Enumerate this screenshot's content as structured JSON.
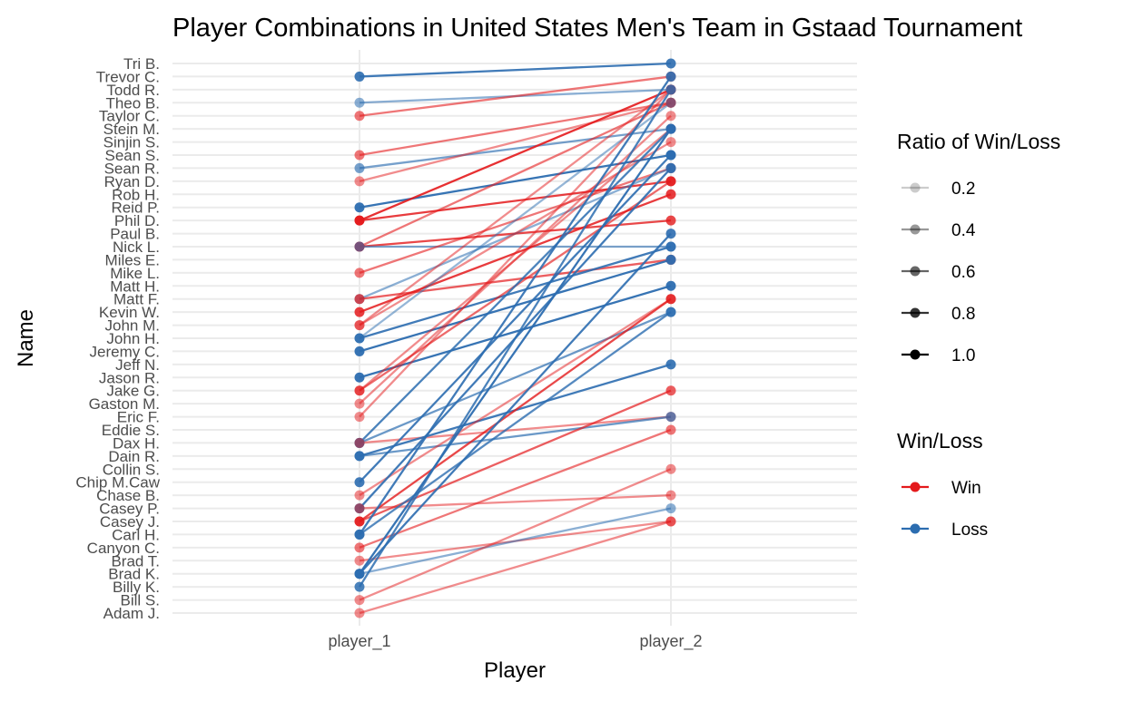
{
  "chart_data": {
    "type": "line",
    "title": "Player Combinations in United States Men's Team in Gstaad Tournament",
    "xlabel": "Player",
    "ylabel": "Name",
    "x_categories": [
      "player_1",
      "player_2"
    ],
    "y_categories": [
      "Adam J.",
      "Bill S.",
      "Billy K.",
      "Brad K.",
      "Brad T.",
      "Canyon C.",
      "Carl H.",
      "Casey J.",
      "Casey P.",
      "Chase B.",
      "Chip M.Caw",
      "Collin S.",
      "Dain R.",
      "Dax H.",
      "Eddie S.",
      "Eric F.",
      "Gaston M.",
      "Jake G.",
      "Jason R.",
      "Jeff N.",
      "Jeremy C.",
      "John H.",
      "John M.",
      "Kevin W.",
      "Matt F.",
      "Matt H.",
      "Mike L.",
      "Miles E.",
      "Nick L.",
      "Paul B.",
      "Phil D.",
      "Reid P.",
      "Rob H.",
      "Ryan D.",
      "Sean R.",
      "Sean S.",
      "Sinjin S.",
      "Stein M.",
      "Taylor C.",
      "Theo B.",
      "Todd R.",
      "Trevor C.",
      "Tri B."
    ],
    "colors": {
      "win": "#e41a1c",
      "loss": "#2c6db0"
    },
    "grid": true,
    "legend_position": "right",
    "legends": {
      "alpha": {
        "title": "Ratio of Win/Loss",
        "values": [
          0.2,
          0.4,
          0.6,
          0.8,
          1.0
        ],
        "labels": [
          "0.2",
          "0.4",
          "0.6",
          "0.8",
          "1.0"
        ]
      },
      "color": {
        "title": "Win/Loss",
        "labels": [
          "Win",
          "Loss"
        ]
      }
    },
    "pairs": [
      {
        "player_1": "Trevor C.",
        "player_2": "Tri B.",
        "result": "Loss",
        "alpha": 0.9
      },
      {
        "player_1": "Theo B.",
        "player_2": "Todd R.",
        "result": "Loss",
        "alpha": 0.55
      },
      {
        "player_1": "Taylor C.",
        "player_2": "Trevor C.",
        "result": "Win",
        "alpha": 0.6
      },
      {
        "player_1": "Sean S.",
        "player_2": "Theo B.",
        "result": "Win",
        "alpha": 0.6
      },
      {
        "player_1": "Sean R.",
        "player_2": "Stein M.",
        "result": "Loss",
        "alpha": 0.65
      },
      {
        "player_1": "Ryan D.",
        "player_2": "Theo B.",
        "result": "Win",
        "alpha": 0.5
      },
      {
        "player_1": "Reid P.",
        "player_2": "Sean S.",
        "result": "Loss",
        "alpha": 0.95
      },
      {
        "player_1": "Phil D.",
        "player_2": "Todd R.",
        "result": "Win",
        "alpha": 0.9
      },
      {
        "player_1": "Phil D.",
        "player_2": "Ryan D.",
        "result": "Win",
        "alpha": 0.85
      },
      {
        "player_1": "Nick L.",
        "player_2": "Phil D.",
        "result": "Win",
        "alpha": 0.8
      },
      {
        "player_1": "Nick L.",
        "player_2": "Theo B.",
        "result": "Win",
        "alpha": 0.6
      },
      {
        "player_1": "Nick L.",
        "player_2": "Nick L.",
        "result": "Loss",
        "alpha": 0.6
      },
      {
        "player_1": "Mike L.",
        "player_2": "Sean R.",
        "result": "Win",
        "alpha": 0.6
      },
      {
        "player_1": "Matt F.",
        "player_2": "Sean R.",
        "result": "Loss",
        "alpha": 0.55
      },
      {
        "player_1": "Matt F.",
        "player_2": "Miles E.",
        "result": "Win",
        "alpha": 0.7
      },
      {
        "player_1": "Kevin W.",
        "player_2": "Rob H.",
        "result": "Win",
        "alpha": 0.85
      },
      {
        "player_1": "John M.",
        "player_2": "Sinjin S.",
        "result": "Win",
        "alpha": 0.5
      },
      {
        "player_1": "John M.",
        "player_2": "Todd R.",
        "result": "Win",
        "alpha": 0.5
      },
      {
        "player_1": "John H.",
        "player_2": "Nick L.",
        "result": "Loss",
        "alpha": 0.9
      },
      {
        "player_1": "John H.",
        "player_2": "Theo B.",
        "result": "Loss",
        "alpha": 0.5
      },
      {
        "player_1": "Jeremy C.",
        "player_2": "Miles E.",
        "result": "Loss",
        "alpha": 0.95
      },
      {
        "player_1": "Jason R.",
        "player_2": "Matt H.",
        "result": "Loss",
        "alpha": 0.95
      },
      {
        "player_1": "Jake G.",
        "player_2": "Stein M.",
        "result": "Win",
        "alpha": 0.5
      },
      {
        "player_1": "Jake G.",
        "player_2": "Ryan D.",
        "result": "Win",
        "alpha": 0.65
      },
      {
        "player_1": "Gaston M.",
        "player_2": "Taylor C.",
        "result": "Win",
        "alpha": 0.5
      },
      {
        "player_1": "Eric F.",
        "player_2": "Todd R.",
        "result": "Win",
        "alpha": 0.5
      },
      {
        "player_1": "Dax H.",
        "player_2": "Stein M.",
        "result": "Loss",
        "alpha": 0.85
      },
      {
        "player_1": "Dax H.",
        "player_2": "Kevin W.",
        "result": "Loss",
        "alpha": 0.7
      },
      {
        "player_1": "Dax H.",
        "player_2": "Eric F.",
        "result": "Win",
        "alpha": 0.5
      },
      {
        "player_1": "Dain R.",
        "player_2": "Jeff N.",
        "result": "Loss",
        "alpha": 0.9
      },
      {
        "player_1": "Dain R.",
        "player_2": "Eric F.",
        "result": "Loss",
        "alpha": 0.7
      },
      {
        "player_1": "Chip M.Caw",
        "player_2": "Sean S.",
        "result": "Loss",
        "alpha": 0.9
      },
      {
        "player_1": "Chase B.",
        "player_2": "Matt F.",
        "result": "Win",
        "alpha": 0.5
      },
      {
        "player_1": "Casey P.",
        "player_2": "Sean R.",
        "result": "Loss",
        "alpha": 0.9
      },
      {
        "player_1": "Casey P.",
        "player_2": "Chase B.",
        "result": "Win",
        "alpha": 0.5
      },
      {
        "player_1": "Casey J.",
        "player_2": "Jake G.",
        "result": "Win",
        "alpha": 0.7
      },
      {
        "player_1": "Casey J.",
        "player_2": "Matt F.",
        "result": "Win",
        "alpha": 0.8
      },
      {
        "player_1": "Carl H.",
        "player_2": "Kevin W.",
        "result": "Loss",
        "alpha": 0.8
      },
      {
        "player_1": "Carl H.",
        "player_2": "Trevor C.",
        "result": "Loss",
        "alpha": 0.9
      },
      {
        "player_1": "Canyon C.",
        "player_2": "Eddie S.",
        "result": "Win",
        "alpha": 0.6
      },
      {
        "player_1": "Brad T.",
        "player_2": "Casey J.",
        "result": "Win",
        "alpha": 0.5
      },
      {
        "player_1": "Brad K.",
        "player_2": "Stein M.",
        "result": "Loss",
        "alpha": 0.95
      },
      {
        "player_1": "Brad K.",
        "player_2": "Casey P.",
        "result": "Loss",
        "alpha": 0.55
      },
      {
        "player_1": "Brad K.",
        "player_2": "Paul B.",
        "result": "Loss",
        "alpha": 0.9
      },
      {
        "player_1": "Billy K.",
        "player_2": "Todd R.",
        "result": "Loss",
        "alpha": 0.85
      },
      {
        "player_1": "Bill S.",
        "player_2": "Collin S.",
        "result": "Win",
        "alpha": 0.5
      },
      {
        "player_1": "Adam J.",
        "player_2": "Casey J.",
        "result": "Win",
        "alpha": 0.5
      }
    ]
  }
}
